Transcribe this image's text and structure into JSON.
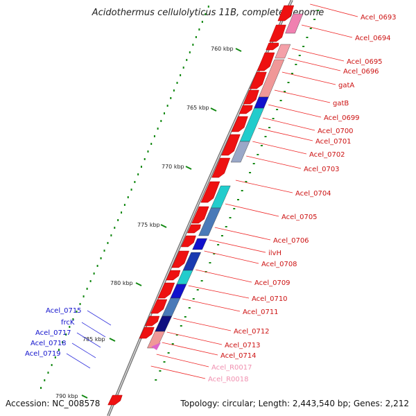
{
  "title": "Acidothermus cellulolyticus 11B, complete genome",
  "accession": "Accession: NC_008578",
  "topology": "Topology: circular; Length: 2,443,540 bp; Genes: 2,212",
  "ticks": [
    "760 kbp",
    "765 kbp",
    "770 kbp",
    "775 kbp",
    "780 kbp",
    "785 kbp",
    "790 kbp"
  ],
  "colors": {
    "forward_gene": "#ee1111",
    "reverse_gene_dark": "#1111cc",
    "reverse_gene_cyan": "#22cccc",
    "rna": "#f4a0c0",
    "label_red": "#cc1111",
    "label_blue": "#1111cc",
    "label_pink": "#f090b0",
    "gc_skew": "#118811",
    "backbone": "#777777"
  },
  "right_labels": [
    {
      "text": "Acel_0693",
      "color": "#cc1111"
    },
    {
      "text": "Acel_0694",
      "color": "#cc1111"
    },
    {
      "text": "Acel_0695",
      "color": "#cc1111"
    },
    {
      "text": "Acel_0696",
      "color": "#cc1111"
    },
    {
      "text": "gatA",
      "color": "#cc1111"
    },
    {
      "text": "gatB",
      "color": "#cc1111"
    },
    {
      "text": "Acel_0699",
      "color": "#cc1111"
    },
    {
      "text": "Acel_0700",
      "color": "#cc1111"
    },
    {
      "text": "Acel_0701",
      "color": "#cc1111"
    },
    {
      "text": "Acel_0702",
      "color": "#cc1111"
    },
    {
      "text": "Acel_0703",
      "color": "#cc1111"
    },
    {
      "text": "Acel_0704",
      "color": "#cc1111"
    },
    {
      "text": "Acel_0705",
      "color": "#cc1111"
    },
    {
      "text": "Acel_0706",
      "color": "#cc1111"
    },
    {
      "text": "ilvH",
      "color": "#cc1111"
    },
    {
      "text": "Acel_0708",
      "color": "#cc1111"
    },
    {
      "text": "Acel_0709",
      "color": "#cc1111"
    },
    {
      "text": "Acel_0710",
      "color": "#cc1111"
    },
    {
      "text": "Acel_0711",
      "color": "#cc1111"
    },
    {
      "text": "Acel_0712",
      "color": "#cc1111"
    },
    {
      "text": "Acel_0713",
      "color": "#cc1111"
    },
    {
      "text": "Acel_0714",
      "color": "#cc1111"
    },
    {
      "text": "Acel_R0017",
      "color": "#f090b0"
    },
    {
      "text": "Acel_R0018",
      "color": "#f090b0"
    }
  ],
  "left_labels": [
    {
      "text": "Acel_0715",
      "color": "#1111cc"
    },
    {
      "text": "frcK",
      "color": "#1111cc"
    },
    {
      "text": "Acel_0717",
      "color": "#1111cc"
    },
    {
      "text": "Acel_0718",
      "color": "#1111cc"
    },
    {
      "text": "Acel_0719",
      "color": "#1111cc"
    }
  ]
}
